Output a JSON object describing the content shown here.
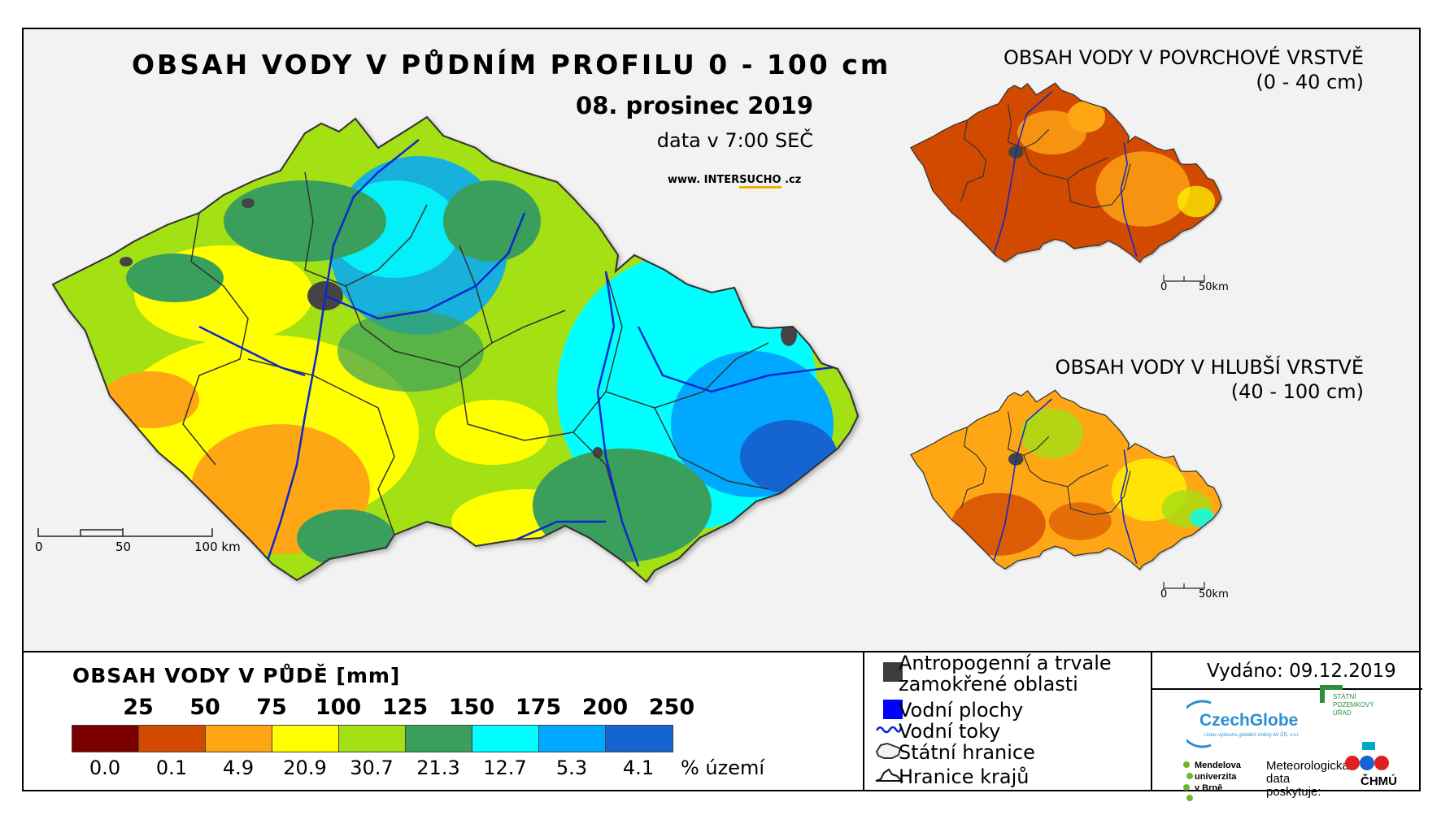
{
  "main_title": "OBSAH VODY V PŮDNÍM PROFILU 0 - 100 cm",
  "date": "08. prosinec 2019",
  "time": "data v 7:00 SEČ",
  "web": {
    "prefix": "www.",
    "name_a": "INTER",
    "name_b": "SUCHO",
    "suffix": ".cz"
  },
  "inset_top": {
    "title_line1": "OBSAH VODY V POVRCHOVÉ VRSTVĚ",
    "title_line2": "(0 - 40 cm)",
    "scale_0": "0",
    "scale_end": "50km"
  },
  "inset_bottom": {
    "title_line1": "OBSAH VODY V HLUBŠÍ VRSTVĚ",
    "title_line2": "(40 - 100 cm)",
    "scale_0": "0",
    "scale_end": "50km"
  },
  "main_scale": {
    "labels": [
      "0",
      "50",
      "100 km"
    ]
  },
  "legend": {
    "title": "OBSAH VODY V PŮDĚ [mm]",
    "thresholds": [
      "25",
      "50",
      "75",
      "100",
      "125",
      "150",
      "175",
      "200",
      "250"
    ],
    "classes": [
      {
        "color": "#7a0000",
        "percent": "0.0"
      },
      {
        "color": "#d24a00",
        "percent": "0.1"
      },
      {
        "color": "#ffa615",
        "percent": "4.9"
      },
      {
        "color": "#ffff00",
        "percent": "20.9"
      },
      {
        "color": "#a3e014",
        "percent": "30.7"
      },
      {
        "color": "#3a9f5c",
        "percent": "21.3"
      },
      {
        "color": "#00ffff",
        "percent": "12.7"
      },
      {
        "color": "#00a8ff",
        "percent": "5.3"
      },
      {
        "color": "#1464d2",
        "percent": "4.1"
      }
    ],
    "percent_label": "% území"
  },
  "symbols": [
    {
      "icon": "dark-square-icon",
      "label": "Antropogenní a trvale\nzamokřené oblasti",
      "line1": "Antropogenní a trvale",
      "line2": "zamokřené oblasti"
    },
    {
      "icon": "blue-square-icon",
      "label": "Vodní plochy"
    },
    {
      "icon": "river-line-icon",
      "label": "Vodní toky"
    },
    {
      "icon": "country-border-icon",
      "label": "Státní hranice"
    },
    {
      "icon": "region-border-icon",
      "label": "Hranice krajů"
    }
  ],
  "issued": "Vydáno: 09.12.2019",
  "logos": {
    "czechglobe": "CzechGlobe",
    "czechglobe_sub": "Ústav výzkumu globální změny AV ČR, v.v.i.",
    "spu": "STÁTNÍ\nPOZEMKOVÝ\nÚŘAD",
    "mendel": "Mendelova\nuniverzita\nv Brně",
    "meteo": "Meteorologická\ndata\nposkytuje:",
    "chmu": "ČHMÚ"
  }
}
